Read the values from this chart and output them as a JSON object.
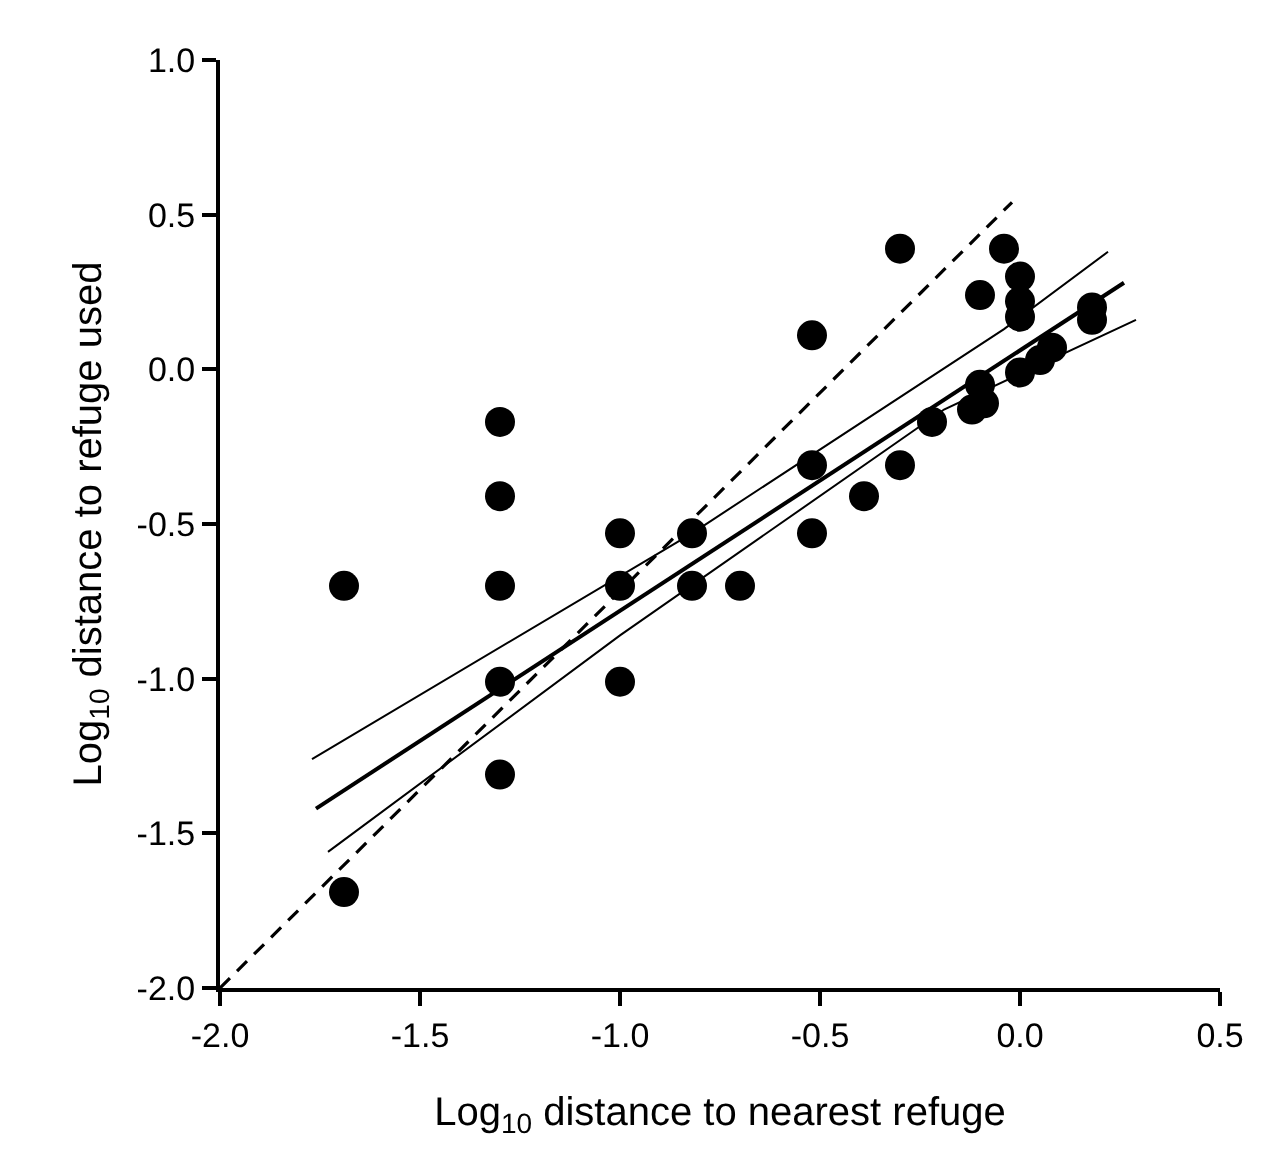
{
  "chart_data": {
    "type": "scatter",
    "xlabel": "Log$_{10}$ distance to nearest refuge",
    "ylabel": "Log$_{10}$ distance to refuge used",
    "xlim": [
      -2.0,
      0.5
    ],
    "ylim": [
      -2.0,
      1.0
    ],
    "xticks": [
      {
        "value": -2.0,
        "label": "-2.0"
      },
      {
        "value": -1.5,
        "label": "-1.5"
      },
      {
        "value": -1.0,
        "label": "-1.0"
      },
      {
        "value": -0.5,
        "label": "-0.5"
      },
      {
        "value": 0.0,
        "label": "0.0"
      },
      {
        "value": 0.5,
        "label": "0.5"
      }
    ],
    "yticks": [
      {
        "value": -2.0,
        "label": "-2.0"
      },
      {
        "value": -1.5,
        "label": "-1.5"
      },
      {
        "value": -1.0,
        "label": "-1.0"
      },
      {
        "value": -0.5,
        "label": "-0.5"
      },
      {
        "value": 0.0,
        "label": "0.0"
      },
      {
        "value": 0.5,
        "label": "0.5"
      },
      {
        "value": 1.0,
        "label": "1.0"
      }
    ],
    "series": [
      {
        "color": "#000000",
        "marker": "circle",
        "x": [
          -1.69,
          -1.69,
          -1.3,
          -1.3,
          -1.3,
          -1.3,
          -1.3,
          -1.0,
          -1.0,
          -1.0,
          -0.82,
          -0.82,
          -0.7,
          -0.52,
          -0.52,
          -0.52,
          -0.3,
          -0.3,
          -0.39,
          -0.22,
          -0.12,
          -0.1,
          -0.09,
          -0.1,
          -0.04,
          0.0,
          0.0,
          0.0,
          0.0,
          0.05,
          0.08,
          0.18,
          0.18
        ],
        "values": [
          -0.7,
          -1.69,
          -0.17,
          -0.41,
          -0.7,
          -1.01,
          -1.31,
          -0.53,
          -0.7,
          -1.01,
          -0.53,
          -0.7,
          -0.7,
          0.11,
          -0.31,
          -0.53,
          0.39,
          -0.31,
          -0.41,
          -0.17,
          -0.13,
          -0.05,
          -0.11,
          0.24,
          0.39,
          0.3,
          0.22,
          0.17,
          -0.01,
          0.03,
          0.07,
          0.2,
          0.16
        ]
      },
      {
        "type": "line",
        "color": "#000000",
        "marker": "none",
        "line_style": "solid",
        "x": [
          -1.76,
          0.26
        ],
        "values": [
          -1.42,
          0.28
        ]
      },
      {
        "type": "line",
        "color": "#000000",
        "marker": "none",
        "line_style": "solid",
        "x": [
          -1.77,
          -0.82,
          -0.04,
          0.22
        ],
        "values": [
          -1.26,
          -0.53,
          0.13,
          0.38
        ]
      },
      {
        "type": "line",
        "color": "#000000",
        "marker": "none",
        "line_style": "solid",
        "x": [
          -1.73,
          -1.0,
          -0.19,
          0.29
        ],
        "values": [
          -1.56,
          -0.86,
          -0.13,
          0.16
        ]
      },
      {
        "type": "line",
        "color": "#000000",
        "marker": "none",
        "line_style": "dashed",
        "x": [
          -2.0,
          -0.02
        ],
        "values": [
          -2.0,
          0.54
        ]
      }
    ]
  }
}
